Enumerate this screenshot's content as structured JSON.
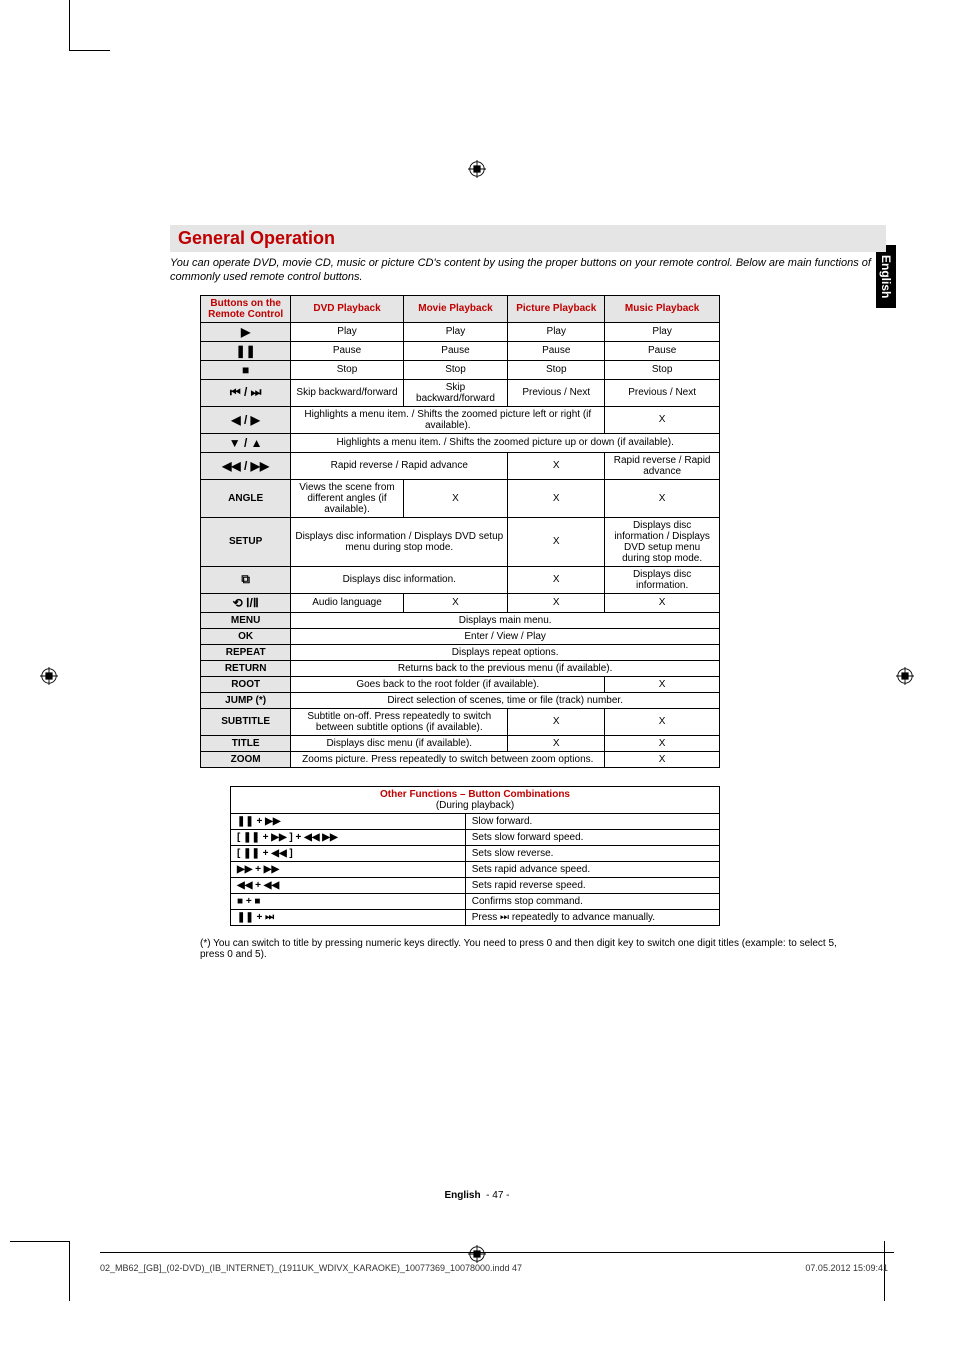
{
  "heading": "General Operation",
  "intro": "You can operate DVD, movie CD, music or picture CD's content by using the proper buttons on your remote control. Below are main functions of commonly used remote control buttons.",
  "side_tab": "English",
  "main_table": {
    "headers": [
      "Buttons on the Remote Control",
      "DVD Playback",
      "Movie Playback",
      "Picture Playback",
      "Music Playback"
    ],
    "rows": [
      {
        "btn_sym": "▶",
        "cells": [
          "Play",
          "Play",
          "Play",
          "Play"
        ]
      },
      {
        "btn_sym": "❚❚",
        "cells": [
          "Pause",
          "Pause",
          "Pause",
          "Pause"
        ]
      },
      {
        "btn_sym": "■",
        "cells": [
          "Stop",
          "Stop",
          "Stop",
          "Stop"
        ]
      },
      {
        "btn_sym": "⏮ / ⏭",
        "cells": [
          "Skip backward/forward",
          "Skip backward/forward",
          "Previous / Next",
          "Previous / Next"
        ]
      },
      {
        "btn_sym": "◀ / ▶",
        "span2": "Highlights a menu item. / Shifts the zoomed picture left or right (if available).",
        "last": "X"
      },
      {
        "btn_sym": "▼ / ▲",
        "span4": "Highlights a menu item. / Shifts the zoomed picture up or down (if available)."
      },
      {
        "btn_sym": "◀◀ / ▶▶",
        "span2b": "Rapid reverse / Rapid advance",
        "c3": "X",
        "c4": "Rapid reverse / Rapid advance"
      },
      {
        "btn_text": "ANGLE",
        "cells": [
          "Views the scene from different angles (if available).",
          "X",
          "X",
          "X"
        ]
      },
      {
        "btn_text": "SETUP",
        "span2b": "Displays disc information / Displays DVD setup menu during stop mode.",
        "c3": "X",
        "c4": "Displays disc information / Displays DVD setup menu during stop mode."
      },
      {
        "btn_sym": "⧉",
        "span2b": "Displays disc information.",
        "c3": "X",
        "c4": "Displays disc information."
      },
      {
        "btn_sym": "⟲ Ⅰ/Ⅱ",
        "cells": [
          "Audio language",
          "X",
          "X",
          "X"
        ]
      },
      {
        "btn_text": "MENU",
        "span4": "Displays main menu."
      },
      {
        "btn_text": "OK",
        "span4": "Enter / View / Play"
      },
      {
        "btn_text": "REPEAT",
        "span4": "Displays repeat options."
      },
      {
        "btn_text": "RETURN",
        "span4": "Returns back to the previous menu (if available)."
      },
      {
        "btn_text": "ROOT",
        "span3": "Goes back to the root folder (if available).",
        "last": "X"
      },
      {
        "btn_text": "JUMP (*)",
        "span4": "Direct selection of scenes, time or file (track) number."
      },
      {
        "btn_text": "SUBTITLE",
        "span2b": "Subtitle on-off. Press repeatedly to switch between subtitle options (if available).",
        "c3": "X",
        "c4": "X"
      },
      {
        "btn_text": "TITLE",
        "span2b": "Displays disc menu (if available).",
        "c3": "X",
        "c4": "X"
      },
      {
        "btn_text": "ZOOM",
        "span3": "Zooms picture. Press repeatedly to switch between zoom options.",
        "last": "X"
      }
    ]
  },
  "combo_table": {
    "header": "Other Functions – Button Combinations",
    "sub": "(During playback)",
    "rows": [
      {
        "keys": "❚❚  +  ▶▶",
        "desc": "Slow forward."
      },
      {
        "keys": "[ ❚❚  +  ▶▶ ]  +  ◀◀ ▶▶",
        "desc": "Sets slow forward speed."
      },
      {
        "keys": "[ ❚❚  +  ◀◀ ]",
        "desc": "Sets slow reverse."
      },
      {
        "keys": "▶▶  +  ▶▶",
        "desc": "Sets rapid advance speed."
      },
      {
        "keys": "◀◀  +  ◀◀",
        "desc": "Sets rapid reverse speed."
      },
      {
        "keys": "■  +  ■",
        "desc": "Confirms stop command."
      },
      {
        "keys": "❚❚  +  ⏭",
        "desc": "Press ⏭ repeatedly to advance manually."
      }
    ]
  },
  "footnote": "(*) You can switch to title by pressing numeric keys directly. You need to press 0 and then digit key to switch one digit titles (example: to select 5, press 0 and 5).",
  "page_number_label": "English",
  "page_number": "- 47 -",
  "footer_file": "02_MB62_[GB]_(02-DVD)_(IB_INTERNET)_(1911UK_WDIVX_KARAOKE)_10077369_10078000.indd   47",
  "footer_date": "07.05.2012   15:09:41"
}
